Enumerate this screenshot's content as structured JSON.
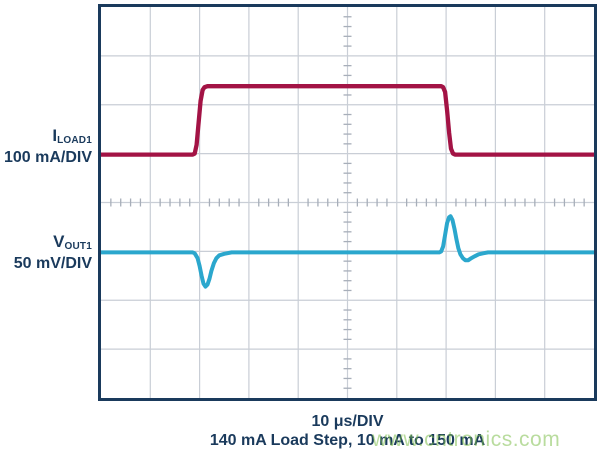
{
  "labels": {
    "trace1_name": "I",
    "trace1_sub": "LOAD1",
    "trace1_scale": "100 mA/DIV",
    "trace2_name": "V",
    "trace2_sub": "OUT1",
    "trace2_scale": "50 mV/DIV"
  },
  "captions": {
    "timebase": "10 μs/DIV",
    "description": "140 mA Load Step, 10 mA to 150 mA"
  },
  "watermark": "www.cntronics.com",
  "colors": {
    "navy": "#1a3a5c",
    "trace_current": "#a31345",
    "trace_voltage": "#2ba7cd",
    "grid": "#c9ced6",
    "ticks": "#a7aeb9",
    "background": "#ffffff",
    "watermark_green": "#b9dc9e"
  },
  "chart_data": {
    "type": "line",
    "title": "",
    "xlabel": "10 μs/DIV",
    "x_units": "us",
    "x_range": [
      0,
      100
    ],
    "grid": {
      "x_divisions": 10,
      "y_divisions": 8,
      "minor_ticks_per_division": 5,
      "time_per_div_us": 10
    },
    "annotations": {
      "load_step": "140 mA Load Step, 10 mA to 150 mA",
      "pulse_start_us": 20,
      "pulse_end_us": 70,
      "undershoot_mV": -35,
      "overshoot_mV": 37
    },
    "series": [
      {
        "name": "ILOAD1",
        "units": "mA",
        "per_div": 100,
        "baseline_div": 3.12,
        "color": "#a31345",
        "stroke_width": 4.3,
        "points": [
          [
            0,
            10
          ],
          [
            18.6,
            10
          ],
          [
            19.0,
            12
          ],
          [
            19.4,
            30
          ],
          [
            19.8,
            75
          ],
          [
            20.2,
            120
          ],
          [
            20.6,
            142
          ],
          [
            21.0,
            148
          ],
          [
            21.6,
            150
          ],
          [
            69.0,
            150
          ],
          [
            69.4,
            148
          ],
          [
            69.8,
            138
          ],
          [
            70.2,
            100
          ],
          [
            70.6,
            55
          ],
          [
            71.0,
            22
          ],
          [
            71.4,
            12
          ],
          [
            71.8,
            10
          ],
          [
            100,
            10
          ]
        ]
      },
      {
        "name": "VOUT1",
        "units": "mV",
        "per_div": 50,
        "baseline_div": 5.02,
        "color": "#2ba7cd",
        "stroke_width": 4.0,
        "points": [
          [
            0,
            0
          ],
          [
            18.6,
            0
          ],
          [
            19.0,
            -1
          ],
          [
            19.6,
            -6
          ],
          [
            20.0,
            -14
          ],
          [
            20.4,
            -24
          ],
          [
            20.8,
            -32
          ],
          [
            21.2,
            -35
          ],
          [
            21.6,
            -33
          ],
          [
            22.0,
            -27
          ],
          [
            22.4,
            -19
          ],
          [
            22.9,
            -11
          ],
          [
            23.4,
            -6
          ],
          [
            24.0,
            -3
          ],
          [
            25.0,
            -1.5
          ],
          [
            26.5,
            0
          ],
          [
            68.6,
            0
          ],
          [
            69.0,
            1
          ],
          [
            69.4,
            6
          ],
          [
            69.8,
            18
          ],
          [
            70.2,
            30
          ],
          [
            70.6,
            36
          ],
          [
            70.9,
            37
          ],
          [
            71.3,
            33
          ],
          [
            71.7,
            24
          ],
          [
            72.1,
            13
          ],
          [
            72.5,
            4
          ],
          [
            72.9,
            -2
          ],
          [
            73.4,
            -6
          ],
          [
            73.9,
            -8
          ],
          [
            74.5,
            -8
          ],
          [
            75.1,
            -6
          ],
          [
            75.8,
            -4
          ],
          [
            76.6,
            -2
          ],
          [
            77.5,
            -1
          ],
          [
            78.5,
            0
          ],
          [
            100,
            0
          ]
        ]
      }
    ]
  }
}
